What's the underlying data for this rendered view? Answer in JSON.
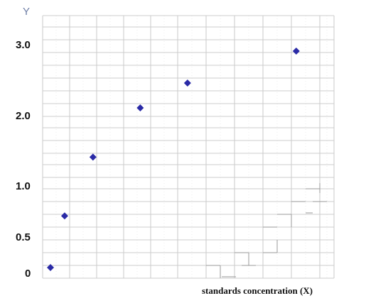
{
  "chart_data": {
    "type": "scatter",
    "y_axis_letter": "Y",
    "xlabel": "standards concentration (X)",
    "y_tick_labels": [
      "3.0",
      "2.0",
      "1.0",
      "0.5",
      "0"
    ],
    "grid": true,
    "point_color": "#2a2aa6",
    "series": [
      {
        "points": [
          {
            "x": 0.0,
            "y": 0.0
          },
          {
            "x": 0.3,
            "y": 0.7
          },
          {
            "x": 0.9,
            "y": 1.4
          },
          {
            "x": 1.9,
            "y": 2.1
          },
          {
            "x": 2.9,
            "y": 2.45
          },
          {
            "x": 5.2,
            "y": 2.9
          }
        ]
      }
    ]
  }
}
